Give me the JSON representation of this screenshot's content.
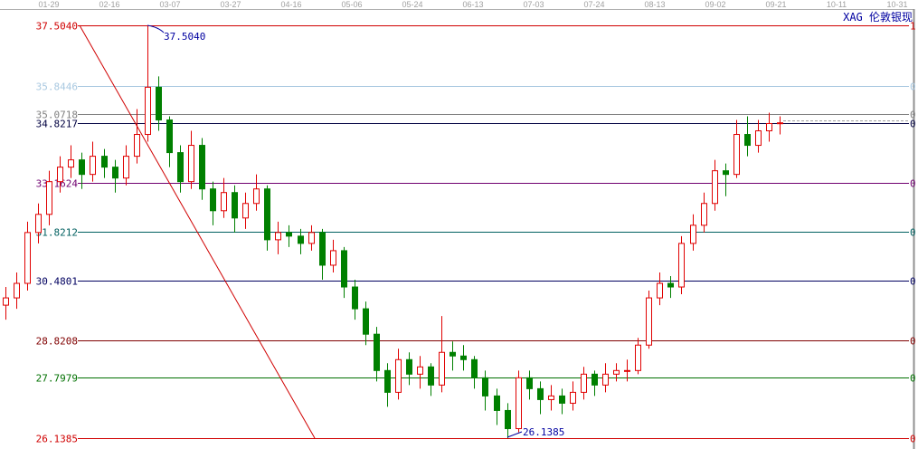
{
  "chart_data": {
    "type": "candlestick",
    "title": "XAG 伦敦银现",
    "x_tick_labels": [
      "01-29",
      "02-16",
      "03-07",
      "03-27",
      "04-16",
      "05-06",
      "05-24",
      "06-13",
      "07-03",
      "07-24",
      "08-13",
      "09-02",
      "09-21",
      "10-11",
      "10-31"
    ],
    "ylim": [
      26.1385,
      37.504
    ],
    "fib_levels": [
      {
        "ratio": "1",
        "price": "37.5040",
        "color": "#d00000"
      },
      {
        "ratio": "0.854",
        "price": "35.8446",
        "color": "#a8c8e0"
      },
      {
        "ratio": "0.786",
        "price": "35.0718",
        "color": "#808080"
      },
      {
        "ratio": "0.764",
        "price": "34.8217",
        "color": "#000040"
      },
      {
        "ratio": "0.618",
        "price": "33.1624",
        "color": "#700070"
      },
      {
        "ratio": "0.5",
        "price": "31.8212",
        "color": "#006060"
      },
      {
        "ratio": "0.382",
        "price": "30.4801",
        "color": "#000060"
      },
      {
        "ratio": "0.236",
        "price": "28.8208",
        "color": "#800000"
      },
      {
        "ratio": "0.146",
        "price": "27.7979",
        "color": "#007000"
      },
      {
        "ratio": "0",
        "price": "26.1385",
        "color": "#d00000"
      }
    ],
    "annotations": {
      "high": "37.5040",
      "low": "26.1385"
    },
    "colors": {
      "up": "#e00000",
      "down": "#008000",
      "annotation": "#0000a0",
      "trendline": "#d00000"
    },
    "candles_ohlc": [
      [
        29.8,
        30.3,
        29.4,
        30.0
      ],
      [
        30.0,
        30.7,
        29.7,
        30.4
      ],
      [
        30.4,
        32.1,
        30.2,
        31.8
      ],
      [
        31.8,
        32.6,
        31.5,
        32.3
      ],
      [
        32.3,
        33.5,
        32.0,
        33.2
      ],
      [
        33.2,
        33.9,
        32.9,
        33.6
      ],
      [
        33.6,
        34.2,
        33.3,
        33.8
      ],
      [
        33.8,
        34.0,
        33.0,
        33.4
      ],
      [
        33.4,
        34.3,
        33.2,
        33.9
      ],
      [
        33.9,
        34.1,
        33.3,
        33.6
      ],
      [
        33.6,
        33.8,
        32.9,
        33.3
      ],
      [
        33.3,
        34.2,
        33.1,
        33.9
      ],
      [
        33.9,
        35.2,
        33.7,
        34.5
      ],
      [
        34.5,
        37.504,
        34.3,
        35.8
      ],
      [
        35.8,
        36.1,
        34.6,
        34.9
      ],
      [
        34.9,
        35.0,
        33.6,
        34.0
      ],
      [
        34.0,
        34.2,
        32.9,
        33.2
      ],
      [
        33.2,
        34.6,
        33.0,
        34.2
      ],
      [
        34.2,
        34.4,
        32.7,
        33.0
      ],
      [
        33.0,
        33.2,
        32.0,
        32.4
      ],
      [
        32.4,
        33.3,
        32.2,
        32.9
      ],
      [
        32.9,
        33.1,
        31.8,
        32.2
      ],
      [
        32.2,
        32.9,
        31.9,
        32.6
      ],
      [
        32.6,
        33.4,
        32.4,
        33.0
      ],
      [
        33.0,
        33.1,
        31.3,
        31.6
      ],
      [
        31.6,
        32.1,
        31.2,
        31.8
      ],
      [
        31.8,
        32.0,
        31.4,
        31.7
      ],
      [
        31.7,
        31.9,
        31.2,
        31.5
      ],
      [
        31.5,
        32.0,
        31.3,
        31.8
      ],
      [
        31.8,
        31.9,
        30.5,
        30.9
      ],
      [
        30.9,
        31.6,
        30.7,
        31.3
      ],
      [
        31.3,
        31.4,
        30.0,
        30.3
      ],
      [
        30.3,
        30.5,
        29.4,
        29.7
      ],
      [
        29.7,
        29.9,
        28.7,
        29.0
      ],
      [
        29.0,
        29.2,
        27.7,
        28.0
      ],
      [
        28.0,
        28.2,
        27.0,
        27.4
      ],
      [
        27.4,
        28.6,
        27.2,
        28.3
      ],
      [
        28.3,
        28.5,
        27.6,
        27.9
      ],
      [
        27.9,
        28.4,
        27.5,
        28.1
      ],
      [
        28.1,
        28.2,
        27.3,
        27.6
      ],
      [
        27.6,
        29.5,
        27.4,
        28.5
      ],
      [
        28.5,
        28.8,
        28.0,
        28.4
      ],
      [
        28.4,
        28.7,
        28.0,
        28.3
      ],
      [
        28.3,
        28.4,
        27.5,
        27.8
      ],
      [
        27.8,
        28.0,
        26.9,
        27.3
      ],
      [
        27.3,
        27.5,
        26.5,
        26.9
      ],
      [
        26.9,
        27.1,
        26.1385,
        26.4
      ],
      [
        26.4,
        28.0,
        26.3,
        27.8
      ],
      [
        27.8,
        28.0,
        27.2,
        27.5
      ],
      [
        27.5,
        27.7,
        26.8,
        27.2
      ],
      [
        27.2,
        27.6,
        26.9,
        27.3
      ],
      [
        27.3,
        27.5,
        26.8,
        27.1
      ],
      [
        27.1,
        27.7,
        26.9,
        27.4
      ],
      [
        27.4,
        28.1,
        27.2,
        27.9
      ],
      [
        27.9,
        28.0,
        27.3,
        27.6
      ],
      [
        27.6,
        28.2,
        27.4,
        27.9
      ],
      [
        27.9,
        28.2,
        27.7,
        28.0
      ],
      [
        28.0,
        28.3,
        27.7,
        28.0
      ],
      [
        28.0,
        28.9,
        27.9,
        28.7
      ],
      [
        28.7,
        30.2,
        28.6,
        30.0
      ],
      [
        30.0,
        30.7,
        29.8,
        30.4
      ],
      [
        30.4,
        30.6,
        30.0,
        30.3
      ],
      [
        30.3,
        31.7,
        30.1,
        31.5
      ],
      [
        31.5,
        32.3,
        31.3,
        32.0
      ],
      [
        32.0,
        32.9,
        31.8,
        32.6
      ],
      [
        32.6,
        33.8,
        32.4,
        33.5
      ],
      [
        33.5,
        33.7,
        32.8,
        33.4
      ],
      [
        33.4,
        34.9,
        33.3,
        34.5
      ],
      [
        34.5,
        35.0,
        33.9,
        34.2
      ],
      [
        34.2,
        34.9,
        34.0,
        34.6
      ],
      [
        34.6,
        35.1,
        34.3,
        34.8
      ],
      [
        34.8,
        35.0,
        34.5,
        34.82
      ]
    ]
  }
}
